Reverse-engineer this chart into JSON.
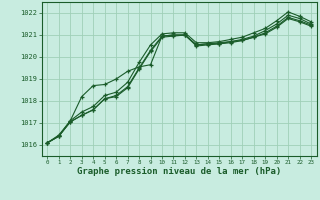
{
  "background_color": "#c8ece0",
  "grid_color": "#a0d0b8",
  "line_color_dark": "#1a5c2a",
  "line_color_mid": "#246b30",
  "xlabel": "Graphe pression niveau de la mer (hPa)",
  "xlabel_fontsize": 6.5,
  "yticks": [
    1016,
    1017,
    1018,
    1019,
    1020,
    1021,
    1022
  ],
  "xticks": [
    0,
    1,
    2,
    3,
    4,
    5,
    6,
    7,
    8,
    9,
    10,
    11,
    12,
    13,
    14,
    15,
    16,
    17,
    18,
    19,
    20,
    21,
    22,
    23
  ],
  "ylim": [
    1015.5,
    1022.5
  ],
  "xlim": [
    -0.5,
    23.5
  ],
  "series1_x": [
    0,
    1,
    2,
    3,
    4,
    5,
    6,
    7,
    8,
    9,
    10,
    11,
    12,
    13,
    14,
    15,
    16,
    17,
    18,
    19,
    20,
    21,
    22,
    23
  ],
  "series1_y": [
    1016.1,
    1016.45,
    1017.1,
    1017.5,
    1017.75,
    1018.25,
    1018.4,
    1018.85,
    1019.75,
    1020.55,
    1021.05,
    1021.1,
    1021.1,
    1020.65,
    1020.65,
    1020.7,
    1020.8,
    1020.9,
    1021.1,
    1021.3,
    1021.65,
    1022.05,
    1021.85,
    1021.6
  ],
  "series2_x": [
    0,
    1,
    2,
    3,
    4,
    5,
    6,
    7,
    8,
    9,
    10,
    11,
    12,
    13,
    14,
    15,
    16,
    17,
    18,
    19,
    20,
    21,
    22,
    23
  ],
  "series2_y": [
    1016.1,
    1016.4,
    1017.05,
    1017.35,
    1017.6,
    1018.1,
    1018.25,
    1018.65,
    1019.5,
    1020.3,
    1020.95,
    1021.0,
    1021.0,
    1020.55,
    1020.6,
    1020.6,
    1020.7,
    1020.8,
    1020.95,
    1021.2,
    1021.5,
    1021.9,
    1021.75,
    1021.5
  ],
  "series3_x": [
    0,
    1,
    2,
    3,
    4,
    5,
    6,
    7,
    8,
    9,
    10,
    11,
    12,
    13,
    14,
    15,
    16,
    17,
    18,
    19,
    20,
    21,
    22,
    23
  ],
  "series3_y": [
    1016.1,
    1016.4,
    1017.05,
    1017.35,
    1017.6,
    1018.1,
    1018.2,
    1018.6,
    1019.45,
    1020.25,
    1020.9,
    1020.95,
    1021.0,
    1020.5,
    1020.55,
    1020.6,
    1020.65,
    1020.75,
    1020.9,
    1021.1,
    1021.4,
    1021.8,
    1021.65,
    1021.45
  ],
  "series4_x": [
    0,
    1,
    2,
    3,
    4,
    5,
    6,
    7,
    8,
    9,
    10,
    11,
    12,
    13,
    14,
    15,
    16,
    17,
    18,
    19,
    20,
    21,
    22,
    23
  ],
  "series4_y": [
    1016.1,
    1016.4,
    1017.1,
    1018.2,
    1018.7,
    1018.75,
    1019.0,
    1019.35,
    1019.55,
    1019.65,
    1020.95,
    1021.0,
    1021.0,
    1020.55,
    1020.6,
    1020.65,
    1020.7,
    1020.75,
    1020.9,
    1021.05,
    1021.35,
    1021.75,
    1021.6,
    1021.4
  ]
}
